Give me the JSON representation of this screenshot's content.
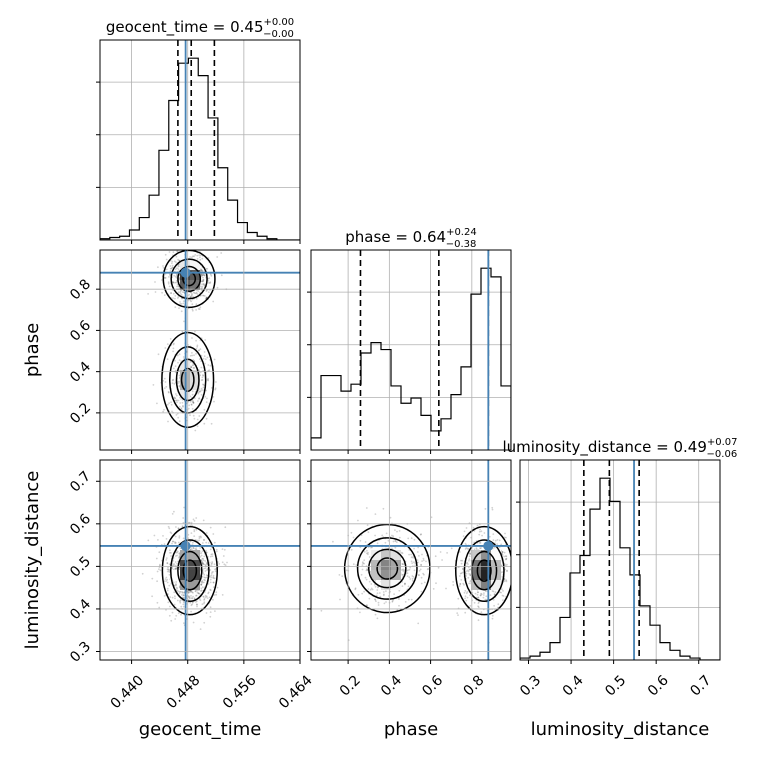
{
  "chart_data": {
    "type": "corner",
    "parameters": [
      "geocent_time",
      "phase",
      "luminosity_distance"
    ],
    "truths": [
      0.4477,
      0.88,
      0.548
    ],
    "titles": [
      {
        "text": "geocent_time = 0.45",
        "sup": "+0.00",
        "sub": "−0.00"
      },
      {
        "text": "phase = 0.64",
        "sup": "+0.24",
        "sub": "−0.38"
      },
      {
        "text": "luminosity_distance = 0.49",
        "sup": "+0.07",
        "sub": "−0.06"
      }
    ],
    "ranges": [
      [
        0.4355,
        0.464
      ],
      [
        0.02,
        0.99
      ],
      [
        0.28,
        0.75
      ]
    ],
    "ticks": [
      {
        "values": [
          0.44,
          0.448,
          0.456,
          0.464
        ],
        "labels": [
          "0.440",
          "0.448",
          "0.456",
          "0.464"
        ]
      },
      {
        "values": [
          0.2,
          0.4,
          0.6,
          0.8
        ],
        "labels": [
          "0.2",
          "0.4",
          "0.6",
          "0.8"
        ]
      },
      {
        "values": [
          0.3,
          0.4,
          0.5,
          0.6,
          0.7
        ],
        "labels": [
          "0.3",
          "0.4",
          "0.5",
          "0.6",
          "0.7"
        ]
      }
    ],
    "quantiles": [
      [
        0.4466,
        0.4485,
        0.4518
      ],
      [
        0.26,
        0.64,
        0.88
      ],
      [
        0.43,
        0.49,
        0.56
      ]
    ],
    "histograms": [
      {
        "edges": [
          0.4355,
          0.4369,
          0.4383,
          0.4397,
          0.4411,
          0.4425,
          0.4439,
          0.4453,
          0.4467,
          0.4481,
          0.4495,
          0.4509,
          0.4523,
          0.4537,
          0.4551,
          0.4565,
          0.4579,
          0.4593,
          0.4607,
          0.4621,
          0.464
        ],
        "counts": [
          1,
          2,
          3,
          8,
          18,
          36,
          72,
          112,
          142,
          146,
          132,
          98,
          58,
          32,
          14,
          6,
          3,
          1,
          0,
          0
        ]
      },
      {
        "edges": [
          0.02,
          0.0685,
          0.117,
          0.1655,
          0.214,
          0.2625,
          0.311,
          0.3595,
          0.408,
          0.4565,
          0.505,
          0.5535,
          0.602,
          0.6505,
          0.699,
          0.7475,
          0.796,
          0.8445,
          0.893,
          0.9415,
          0.99
        ],
        "counts": [
          7,
          43,
          43,
          34,
          38,
          56,
          62,
          58,
          37,
          27,
          30,
          20,
          11,
          18,
          32,
          48,
          90,
          105,
          100,
          37
        ]
      },
      {
        "edges": [
          0.28,
          0.3035,
          0.327,
          0.3505,
          0.374,
          0.3975,
          0.421,
          0.4445,
          0.468,
          0.4915,
          0.515,
          0.5385,
          0.562,
          0.5855,
          0.609,
          0.6325,
          0.656,
          0.6795,
          0.703,
          0.7265,
          0.75
        ],
        "counts": [
          1,
          2,
          4,
          9,
          22,
          45,
          54,
          78,
          94,
          82,
          58,
          44,
          28,
          18,
          9,
          5,
          2,
          1,
          0,
          0
        ]
      }
    ],
    "modes": [
      {
        "row": 1,
        "col": 0,
        "peaks": [
          [
            0.4482,
            0.85,
            0.0016,
            0.06,
            0.6
          ],
          [
            0.448,
            0.36,
            0.0016,
            0.1,
            0.4
          ]
        ]
      },
      {
        "row": 2,
        "col": 0,
        "peaks": [
          [
            0.4483,
            0.49,
            0.0017,
            0.045,
            1.0
          ]
        ]
      },
      {
        "row": 2,
        "col": 1,
        "peaks": [
          [
            0.39,
            0.495,
            0.09,
            0.045,
            0.45
          ],
          [
            0.86,
            0.49,
            0.06,
            0.045,
            0.6
          ]
        ]
      }
    ]
  }
}
